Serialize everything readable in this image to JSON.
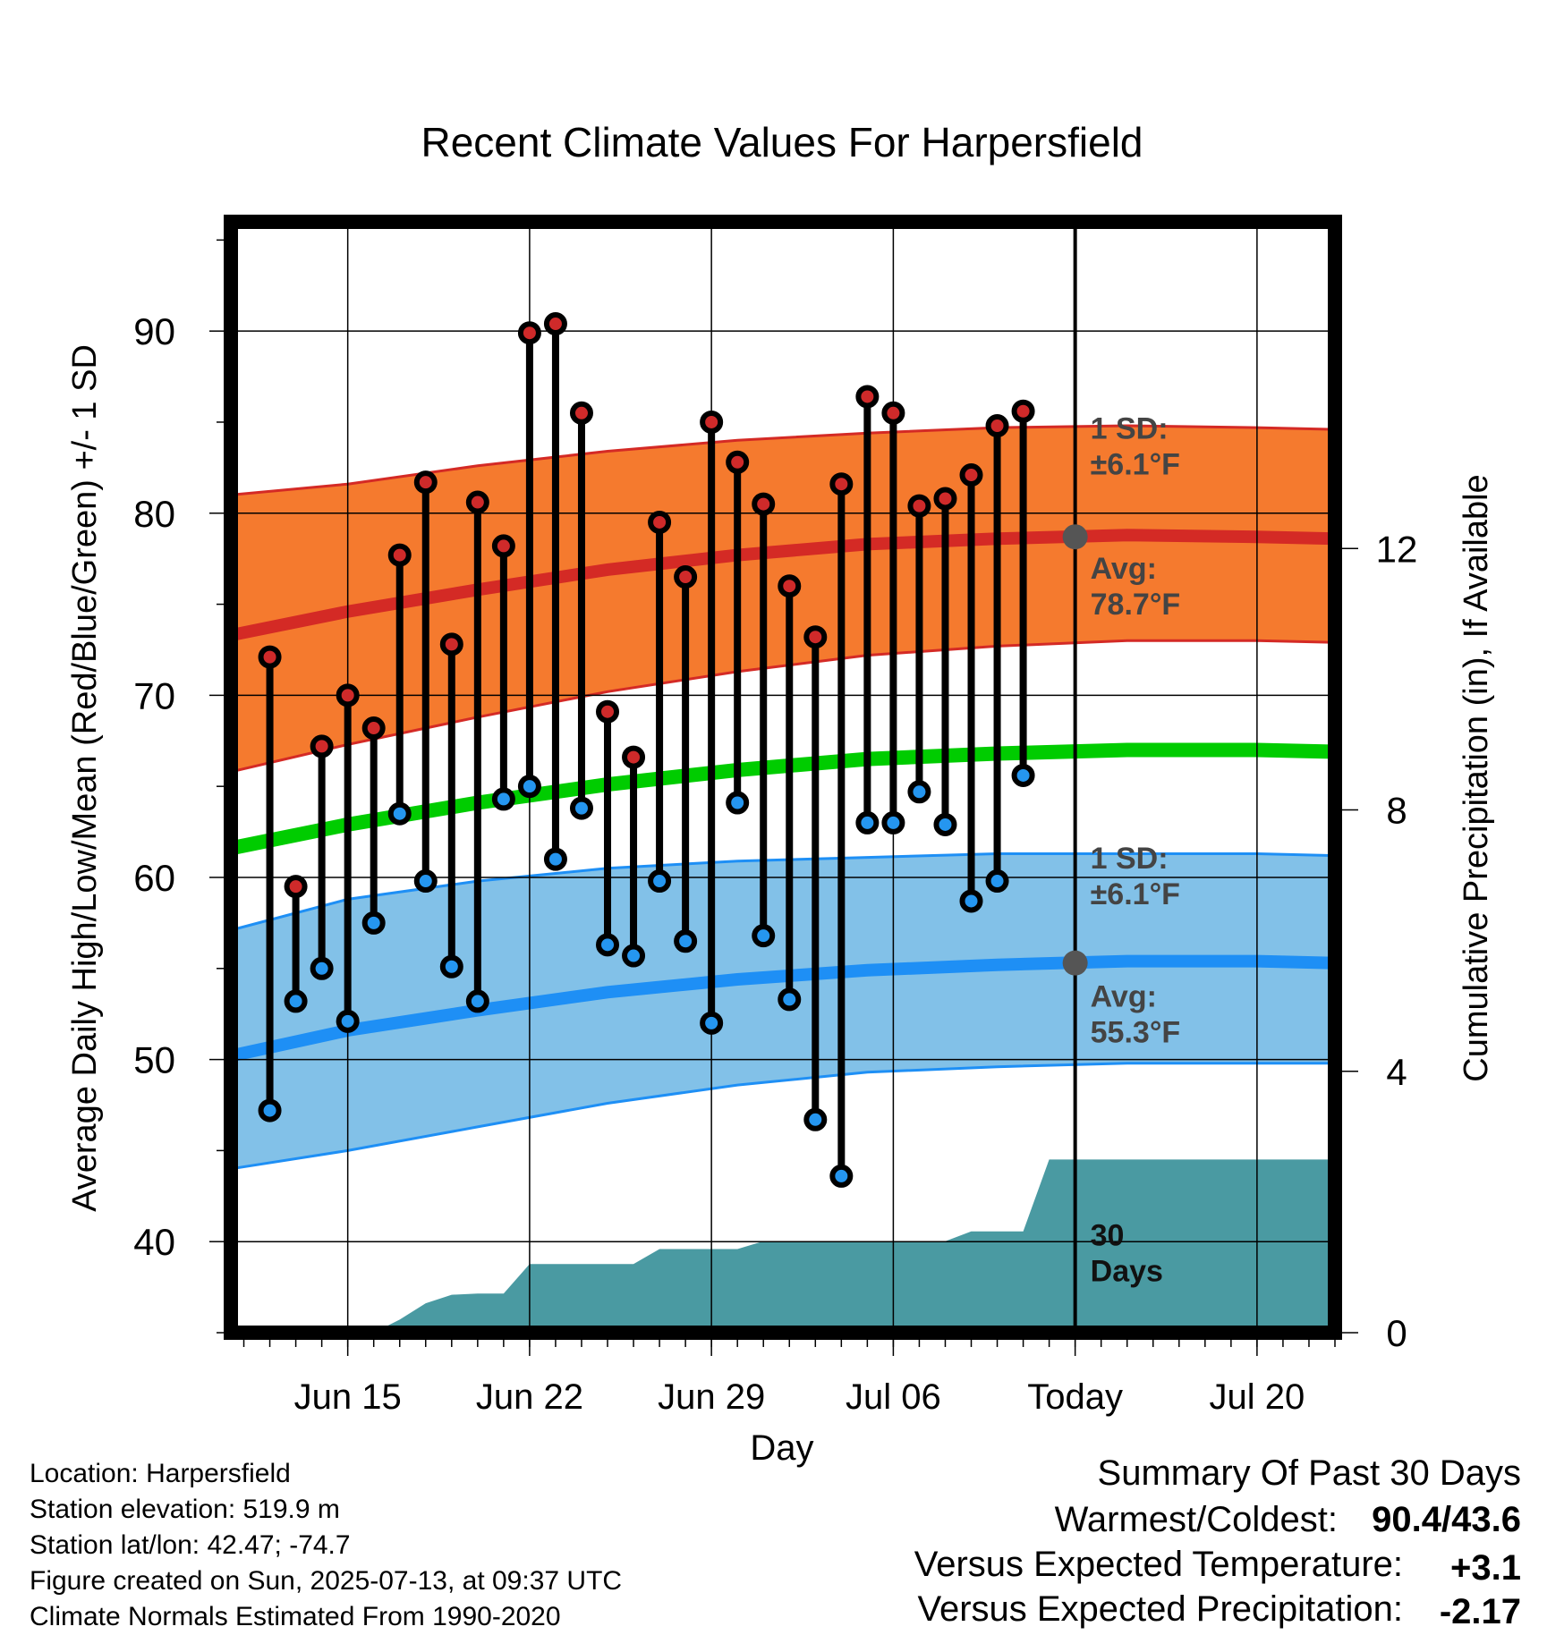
{
  "chart_data": {
    "type": "line",
    "title": "Recent Climate Values For Harpersfield",
    "xlabel": "Day",
    "ylabel": "Average Daily High/Low/Mean (Red/Blue/Green) +/- 1 SD",
    "y2label": "Cumulative Precipitation (in), If Available",
    "ylim": [
      35,
      96
    ],
    "y_ticks": [
      40,
      50,
      60,
      70,
      80,
      90
    ],
    "y2lim": [
      0,
      17
    ],
    "y2_ticks": [
      0,
      4,
      8,
      12
    ],
    "xlim": [
      "2025-06-10T12:00",
      "2025-07-23T00:00"
    ],
    "x_ticks": [
      {
        "date": "2025-06-15",
        "label": "Jun 15"
      },
      {
        "date": "2025-06-22",
        "label": "Jun 22"
      },
      {
        "date": "2025-06-29",
        "label": "Jun 29"
      },
      {
        "date": "2025-07-06",
        "label": "Jul 06"
      },
      {
        "date": "2025-07-13",
        "label": "Today"
      },
      {
        "date": "2025-07-20",
        "label": "Jul 20"
      }
    ],
    "today": "2025-07-13",
    "grid": true,
    "dates": [
      "2025-06-12",
      "2025-06-13",
      "2025-06-14",
      "2025-06-15",
      "2025-06-16",
      "2025-06-17",
      "2025-06-18",
      "2025-06-19",
      "2025-06-20",
      "2025-06-21",
      "2025-06-22",
      "2025-06-23",
      "2025-06-24",
      "2025-06-25",
      "2025-06-26",
      "2025-06-27",
      "2025-06-28",
      "2025-06-29",
      "2025-06-30",
      "2025-07-01",
      "2025-07-02",
      "2025-07-03",
      "2025-07-04",
      "2025-07-05",
      "2025-07-06",
      "2025-07-07",
      "2025-07-08",
      "2025-07-09",
      "2025-07-10",
      "2025-07-11",
      "2025-07-12"
    ],
    "observed_high": [
      72.1,
      59.5,
      67.2,
      70.0,
      68.2,
      77.7,
      81.7,
      72.8,
      80.6,
      78.2,
      89.9,
      90.4,
      85.5,
      69.1,
      66.6,
      79.5,
      76.5,
      85.0,
      82.8,
      80.5,
      76.0,
      73.2,
      81.6,
      86.4,
      85.5,
      80.4,
      80.8,
      82.1,
      84.8,
      85.6,
      null
    ],
    "observed_low": [
      47.2,
      53.2,
      55.0,
      52.1,
      57.5,
      63.5,
      59.8,
      55.1,
      53.2,
      64.3,
      65.0,
      61.0,
      63.8,
      56.3,
      55.7,
      59.8,
      56.5,
      52.0,
      64.1,
      56.8,
      53.3,
      46.7,
      43.6,
      63.0,
      63.0,
      64.7,
      62.9,
      58.7,
      59.8,
      65.6,
      null
    ],
    "normals": {
      "dates": [
        "2025-06-10T12:00",
        "2025-06-15",
        "2025-06-20",
        "2025-06-25",
        "2025-06-30",
        "2025-07-05",
        "2025-07-10",
        "2025-07-15",
        "2025-07-20",
        "2025-07-23"
      ],
      "high_avg": [
        73.3,
        74.6,
        75.8,
        76.9,
        77.7,
        78.3,
        78.6,
        78.8,
        78.7,
        78.6
      ],
      "high_upper": [
        81.0,
        81.6,
        82.6,
        83.4,
        84.0,
        84.4,
        84.7,
        84.8,
        84.7,
        84.6
      ],
      "high_lower": [
        65.8,
        67.3,
        68.8,
        70.2,
        71.3,
        72.2,
        72.7,
        73.0,
        73.0,
        72.9
      ],
      "mean": [
        61.6,
        62.9,
        64.1,
        65.1,
        65.9,
        66.5,
        66.8,
        67.0,
        67.0,
        66.9
      ],
      "low_avg": [
        50.2,
        51.6,
        52.7,
        53.7,
        54.4,
        54.9,
        55.2,
        55.4,
        55.4,
        55.3
      ],
      "low_upper": [
        57.1,
        58.8,
        59.8,
        60.5,
        60.9,
        61.1,
        61.3,
        61.3,
        61.3,
        61.2
      ],
      "low_lower": [
        44.0,
        45.0,
        46.3,
        47.6,
        48.6,
        49.3,
        49.6,
        49.8,
        49.8,
        49.8
      ]
    },
    "precip_cumulative": {
      "dates": [
        "2025-06-10T12:00",
        "2025-06-16",
        "2025-06-17",
        "2025-06-18",
        "2025-06-19",
        "2025-06-20",
        "2025-06-21",
        "2025-06-22",
        "2025-06-26",
        "2025-06-27",
        "2025-06-30",
        "2025-07-01",
        "2025-07-08",
        "2025-07-09",
        "2025-07-11",
        "2025-07-12",
        "2025-07-23"
      ],
      "values": [
        0.0,
        0.0,
        0.2,
        0.45,
        0.58,
        0.6,
        0.6,
        1.05,
        1.05,
        1.28,
        1.28,
        1.4,
        1.4,
        1.55,
        1.55,
        2.65,
        2.65
      ],
      "label": [
        "30",
        "Days"
      ]
    },
    "annotations": {
      "high_sd": [
        "1 SD:",
        "±6.1°F"
      ],
      "high_avg": [
        "Avg:",
        "78.7°F"
      ],
      "low_sd": [
        "1 SD:",
        "±6.1°F"
      ],
      "low_avg": [
        "Avg:",
        "55.3°F"
      ],
      "high_avg_today": 78.7,
      "low_avg_today": 55.3
    },
    "colors": {
      "high_band": "#f57a2e",
      "high_line": "#d42a25",
      "low_band": "#82c1e8",
      "low_line": "#1e8ff5",
      "low_band_edge": "#1e8ff5",
      "mean_line": "#00cc00",
      "precip_fill": "#4a9aa2",
      "high_dot": "#cf2a2a",
      "low_dot": "#2596f0",
      "avg_marker": "#555555"
    }
  },
  "info": {
    "location": "Location: Harpersfield",
    "elevation": "Station elevation: 519.9 m",
    "latlon": "Station lat/lon: 42.47; -74.7",
    "created": "Figure created on Sun, 2025-07-13, at 09:37 UTC",
    "normals": "Climate Normals Estimated From 1990-2020"
  },
  "summary": {
    "title": "Summary Of Past 30 Days",
    "warmest_label": "Warmest/Coldest:",
    "warmest_value": "90.4/43.6",
    "temp_label": "Versus Expected Temperature:",
    "temp_value": "+3.1",
    "temp_color": "#cc2222",
    "precip_label": "Versus Expected Precipitation:",
    "precip_value": "-2.17",
    "precip_color": "#a0522d"
  }
}
